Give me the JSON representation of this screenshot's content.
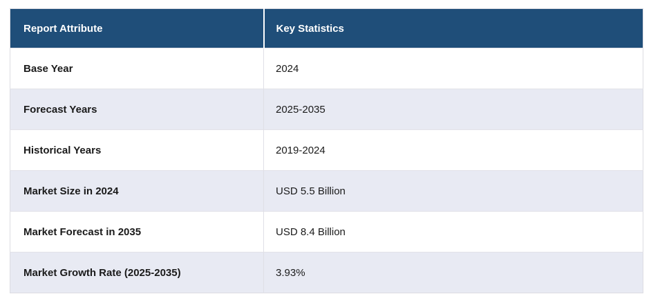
{
  "colors": {
    "header_bg": "#1f4e79",
    "header_text": "#ffffff",
    "row_bg": "#ffffff",
    "row_alt_bg": "#e8eaf3",
    "border": "#dcdce2",
    "body_text": "#1a1a1a"
  },
  "table": {
    "headers": [
      "Report Attribute",
      "Key Statistics"
    ],
    "rows": [
      {
        "attribute": "Base Year",
        "value": "2024"
      },
      {
        "attribute": "Forecast Years",
        "value": "2025-2035"
      },
      {
        "attribute": "Historical Years",
        "value": "2019-2024"
      },
      {
        "attribute": "Market Size in 2024",
        "value": "USD 5.5 Billion"
      },
      {
        "attribute": "Market Forecast in 2035",
        "value": "USD 8.4 Billion"
      },
      {
        "attribute": "Market Growth Rate (2025-2035)",
        "value": "3.93%"
      }
    ]
  },
  "chart_data": {
    "type": "table",
    "columns": [
      "Report Attribute",
      "Key Statistics"
    ],
    "rows": [
      [
        "Base Year",
        "2024"
      ],
      [
        "Forecast Years",
        "2025-2035"
      ],
      [
        "Historical Years",
        "2019-2024"
      ],
      [
        "Market Size in 2024",
        "USD 5.5 Billion"
      ],
      [
        "Market Forecast in 2035",
        "USD 8.4 Billion"
      ],
      [
        "Market Growth Rate (2025-2035)",
        "3.93%"
      ]
    ]
  }
}
